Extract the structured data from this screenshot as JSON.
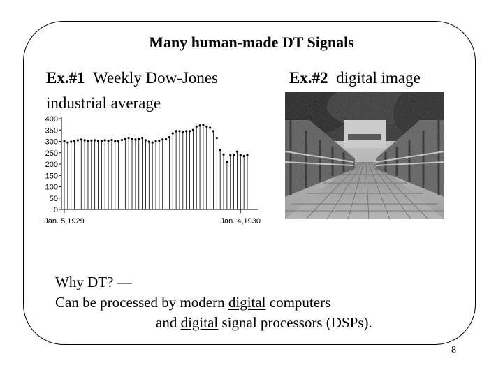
{
  "slide": {
    "title": "Many human-made DT Signals",
    "ex1": {
      "num": "Ex.#1",
      "text1": "Weekly Dow-Jones",
      "text2": "industrial average"
    },
    "ex2": {
      "num": "Ex.#2",
      "text": "digital image"
    },
    "why": {
      "line1": "Why DT?  —",
      "line2_pre": "Can be processed by modern ",
      "line2_u": "digital",
      "line2_post": " computers",
      "line3_pre": "and ",
      "line3_u": "digital",
      "line3_post": " signal processors (DSPs)."
    },
    "page_number": "8"
  },
  "chart_data": {
    "type": "stem",
    "title": "",
    "xlabel": "",
    "ylabel": "",
    "ylim": [
      0,
      400
    ],
    "yticks": [
      0,
      50,
      100,
      150,
      200,
      250,
      300,
      350,
      400
    ],
    "x_labels": [
      {
        "label": "Jan. 5,1929",
        "index": 0
      },
      {
        "label": "Jan. 4,1930",
        "index": 52
      }
    ],
    "values": [
      300,
      295,
      298,
      302,
      305,
      308,
      305,
      302,
      304,
      305,
      300,
      302,
      305,
      303,
      306,
      300,
      302,
      306,
      310,
      315,
      312,
      308,
      310,
      315,
      305,
      298,
      295,
      300,
      303,
      308,
      310,
      318,
      335,
      345,
      345,
      343,
      345,
      345,
      350,
      365,
      370,
      372,
      365,
      360,
      345,
      315,
      262,
      242,
      210,
      238,
      240,
      255,
      240,
      235,
      240
    ]
  },
  "image": {
    "name": "digital-image-bridge",
    "kind": "grayscale-photo"
  }
}
